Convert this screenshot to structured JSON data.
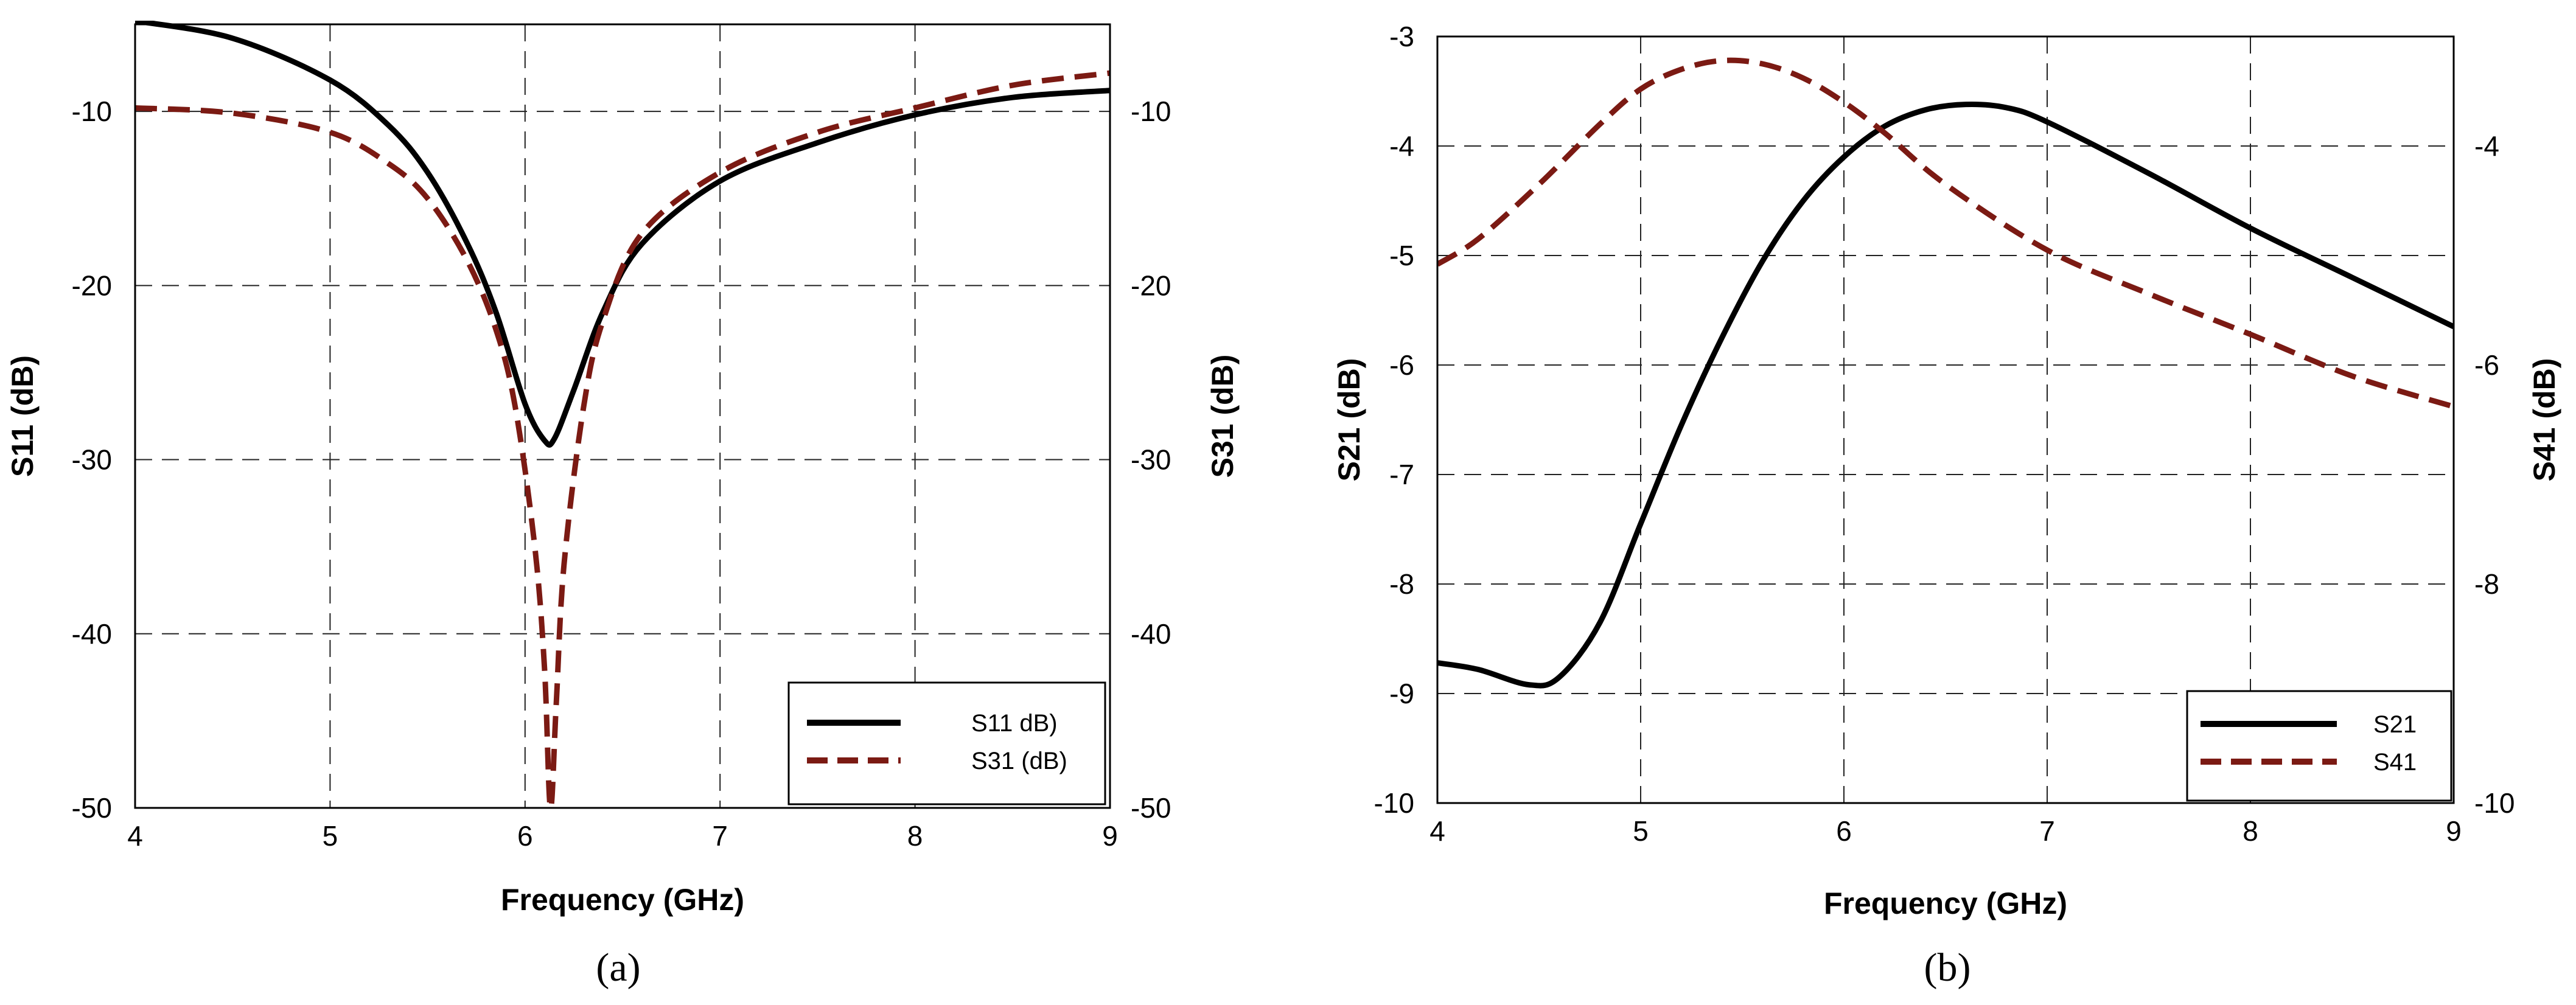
{
  "colors": {
    "series_black": "#000000",
    "series_maroon": "#7b1a13"
  },
  "chart_data": [
    {
      "type": "line",
      "caption": "(a)",
      "xlabel": "Frequency (GHz)",
      "ylabel": "S11 (dB)",
      "ylabel_right": "S31 (dB)",
      "xlim": [
        4,
        9
      ],
      "ylim": [
        -50,
        -5
      ],
      "x_ticks": [
        4,
        5,
        6,
        7,
        8,
        9
      ],
      "y_ticks": [
        -50,
        -40,
        -30,
        -20,
        -10
      ],
      "grid": true,
      "legend_position": "bottom-right",
      "series": [
        {
          "name": "S11 dB)",
          "color": "#000000",
          "style": "solid",
          "axis": "left",
          "x": [
            4.0,
            4.5,
            5.0,
            5.3,
            5.5,
            5.7,
            5.85,
            6.0,
            6.1,
            6.15,
            6.25,
            6.4,
            6.6,
            7.0,
            7.5,
            8.0,
            8.5,
            9.0
          ],
          "y": [
            -4.8,
            -5.8,
            -8.2,
            -10.8,
            -13.5,
            -17.5,
            -21.5,
            -26.8,
            -28.9,
            -28.8,
            -26.0,
            -21.5,
            -17.6,
            -14.0,
            -11.8,
            -10.2,
            -9.2,
            -8.8
          ]
        },
        {
          "name": "S31 (dB)",
          "color": "#7b1a13",
          "style": "dashed",
          "axis": "right",
          "x": [
            4.0,
            4.5,
            5.0,
            5.3,
            5.5,
            5.7,
            5.85,
            5.95,
            6.05,
            6.1,
            6.13,
            6.16,
            6.2,
            6.3,
            6.4,
            6.6,
            7.0,
            7.5,
            8.0,
            8.5,
            9.0
          ],
          "y": [
            -9.8,
            -10.1,
            -11.2,
            -13.0,
            -15.0,
            -18.5,
            -22.5,
            -27.0,
            -35.0,
            -42.0,
            -50.0,
            -44.0,
            -36.0,
            -27.0,
            -22.0,
            -17.0,
            -13.5,
            -11.2,
            -9.8,
            -8.5,
            -7.8
          ]
        }
      ]
    },
    {
      "type": "line",
      "caption": "(b)",
      "xlabel": "Frequency (GHz)",
      "ylabel": "S21 (dB)",
      "ylabel_right": "S41 (dB)",
      "xlim": [
        4,
        9
      ],
      "ylim": [
        -10,
        -3
      ],
      "x_ticks": [
        4,
        5,
        6,
        7,
        8,
        9
      ],
      "y_ticks": [
        -10,
        -9,
        -8,
        -7,
        -6,
        -5,
        -4,
        -3
      ],
      "y_ticks_right": [
        -10,
        -8,
        -6,
        -4
      ],
      "grid": true,
      "legend_position": "bottom-right",
      "series": [
        {
          "name": "S21",
          "color": "#000000",
          "style": "solid",
          "axis": "left",
          "x": [
            4.0,
            4.2,
            4.45,
            4.6,
            4.8,
            5.0,
            5.2,
            5.4,
            5.6,
            5.8,
            6.0,
            6.2,
            6.4,
            6.6,
            6.8,
            7.0,
            7.5,
            8.0,
            8.5,
            9.0
          ],
          "y": [
            -8.72,
            -8.78,
            -8.92,
            -8.85,
            -8.35,
            -7.45,
            -6.55,
            -5.75,
            -5.05,
            -4.5,
            -4.1,
            -3.82,
            -3.67,
            -3.62,
            -3.65,
            -3.78,
            -4.25,
            -4.75,
            -5.2,
            -5.65
          ]
        },
        {
          "name": "S41",
          "color": "#7b1a13",
          "style": "dashed",
          "axis": "right",
          "x": [
            4.0,
            4.2,
            4.5,
            4.8,
            5.0,
            5.2,
            5.4,
            5.6,
            5.8,
            6.0,
            6.2,
            6.5,
            7.0,
            7.5,
            8.0,
            8.5,
            9.0
          ],
          "y": [
            -5.08,
            -4.85,
            -4.35,
            -3.8,
            -3.48,
            -3.3,
            -3.22,
            -3.25,
            -3.38,
            -3.6,
            -3.88,
            -4.35,
            -4.95,
            -5.35,
            -5.72,
            -6.1,
            -6.38
          ]
        }
      ]
    }
  ]
}
